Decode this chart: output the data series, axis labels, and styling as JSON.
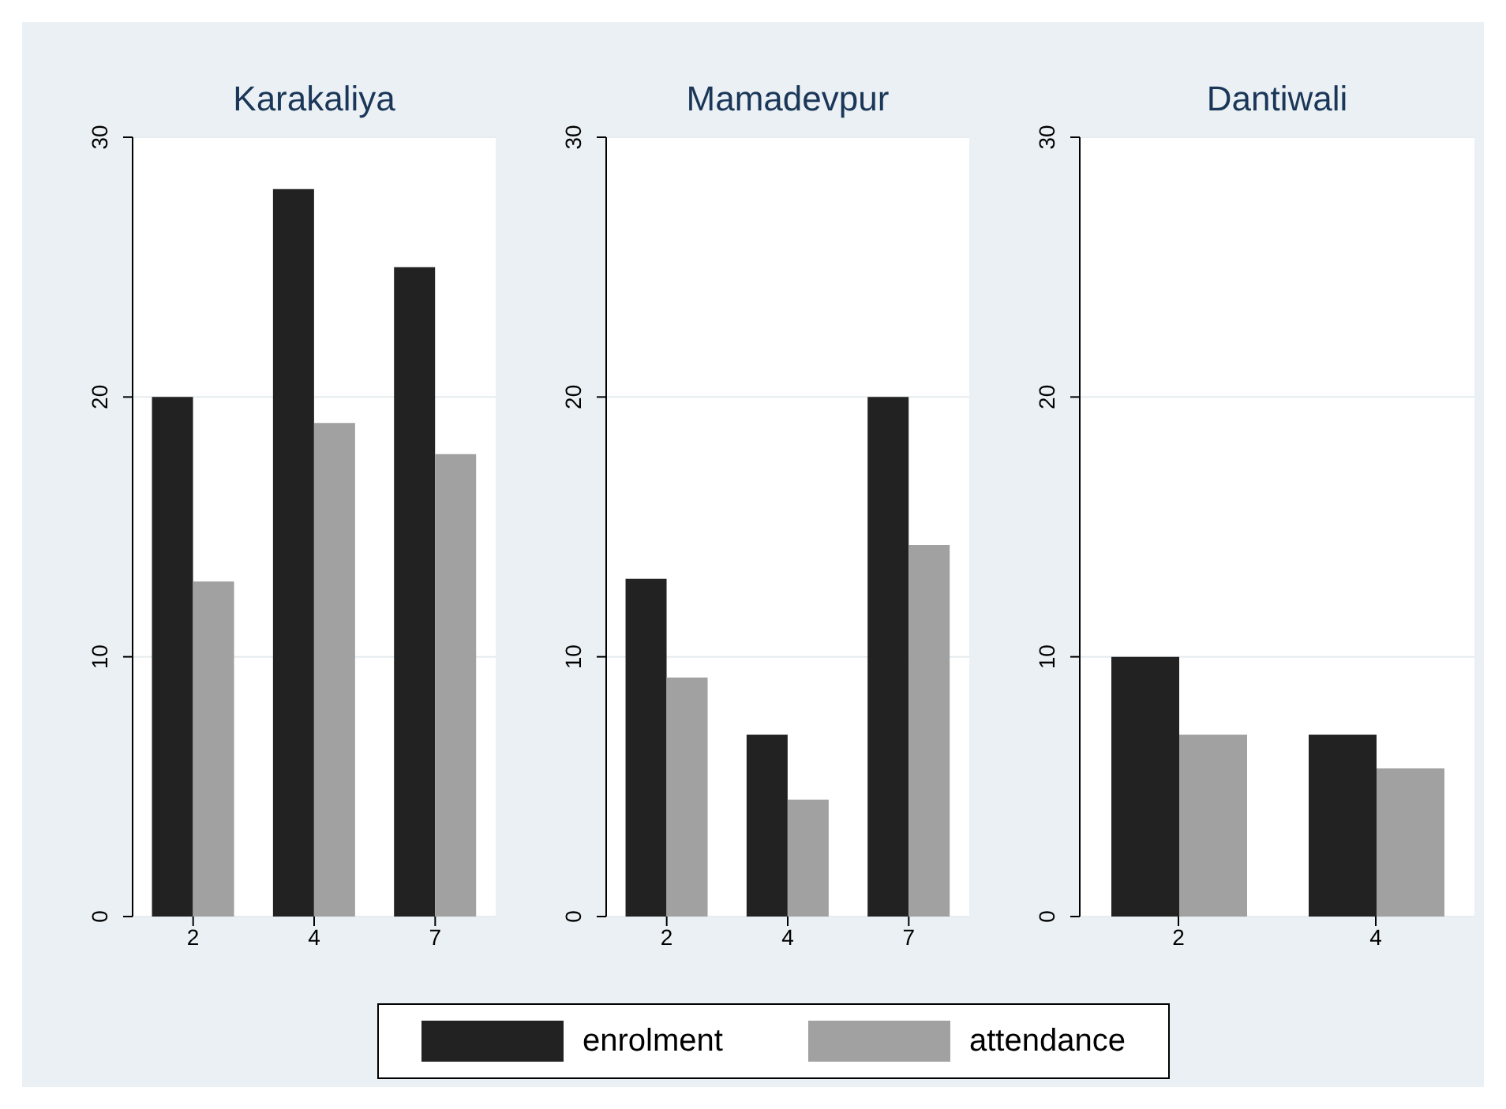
{
  "chart_data": [
    {
      "type": "bar",
      "title": "Karakaliya",
      "categories": [
        "2",
        "4",
        "7"
      ],
      "series": [
        {
          "name": "enrolment",
          "color": "#222222",
          "values": [
            20,
            28,
            25
          ]
        },
        {
          "name": "attendance",
          "color": "#a1a1a1",
          "values": [
            12.9,
            19,
            17.8
          ]
        }
      ],
      "ylim": [
        0,
        30
      ],
      "yticks": [
        0,
        10,
        20,
        30
      ],
      "grid": "y",
      "legend": "bottom"
    },
    {
      "type": "bar",
      "title": "Mamadevpur",
      "categories": [
        "2",
        "4",
        "7"
      ],
      "series": [
        {
          "name": "enrolment",
          "color": "#222222",
          "values": [
            13,
            7,
            20
          ]
        },
        {
          "name": "attendance",
          "color": "#a1a1a1",
          "values": [
            9.2,
            4.5,
            14.3
          ]
        }
      ],
      "ylim": [
        0,
        30
      ],
      "yticks": [
        0,
        10,
        20,
        30
      ],
      "grid": "y",
      "legend": "bottom"
    },
    {
      "type": "bar",
      "title": "Dantiwali",
      "categories": [
        "2",
        "4"
      ],
      "series": [
        {
          "name": "enrolment",
          "color": "#222222",
          "values": [
            10,
            7
          ]
        },
        {
          "name": "attendance",
          "color": "#a1a1a1",
          "values": [
            7,
            5.7
          ]
        }
      ],
      "ylim": [
        0,
        30
      ],
      "yticks": [
        0,
        10,
        20,
        30
      ],
      "grid": "y",
      "legend": "bottom"
    }
  ]
}
